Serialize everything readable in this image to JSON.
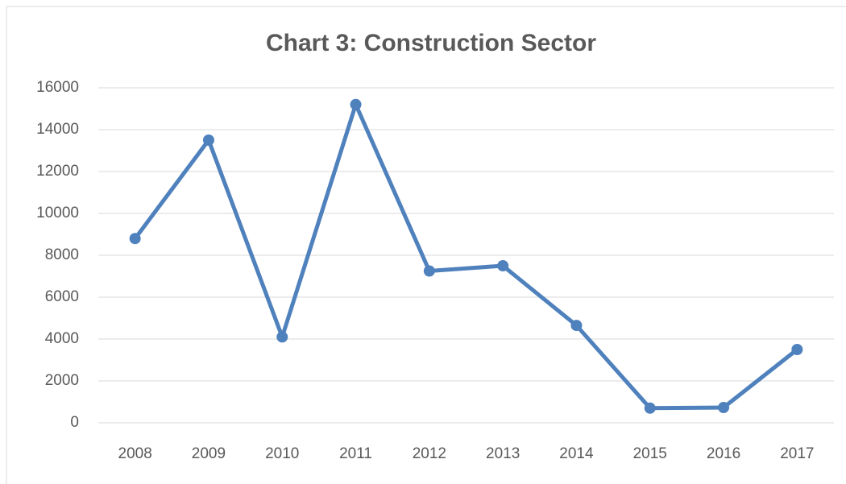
{
  "chart_data": {
    "type": "line",
    "title": "Chart 3: Construction Sector",
    "categories": [
      "2008",
      "2009",
      "2010",
      "2011",
      "2012",
      "2013",
      "2014",
      "2015",
      "2016",
      "2017"
    ],
    "series": [
      {
        "name": "Construction Sector",
        "color": "#4f81bd",
        "values": [
          8800,
          13500,
          4100,
          15200,
          7250,
          7500,
          4650,
          700,
          730,
          3500
        ]
      }
    ],
    "ylim": [
      0,
      16000
    ],
    "yticks": [
      0,
      2000,
      4000,
      6000,
      8000,
      10000,
      12000,
      14000,
      16000
    ],
    "grid": true
  }
}
